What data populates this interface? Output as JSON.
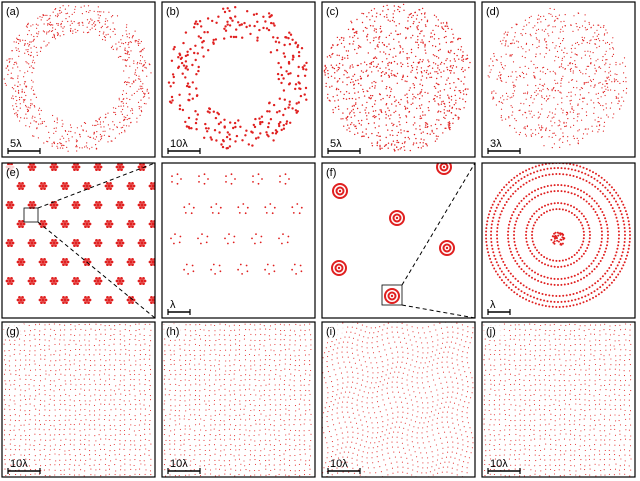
{
  "panels": [
    {
      "label": "(a)",
      "scale": "5λ"
    },
    {
      "label": "(b)",
      "scale": "10λ"
    },
    {
      "label": "(c)",
      "scale": "5λ"
    },
    {
      "label": "(d)",
      "scale": "3λ"
    },
    {
      "label": "(e)"
    },
    {
      "scale": "λ"
    },
    {
      "label": "(f)"
    },
    {
      "scale": "λ"
    },
    {
      "label": "(g)",
      "scale": "10λ"
    },
    {
      "label": "(h)",
      "scale": "10λ"
    },
    {
      "label": "(i)",
      "scale": "10λ"
    },
    {
      "label": "(j)",
      "scale": "10λ"
    }
  ]
}
